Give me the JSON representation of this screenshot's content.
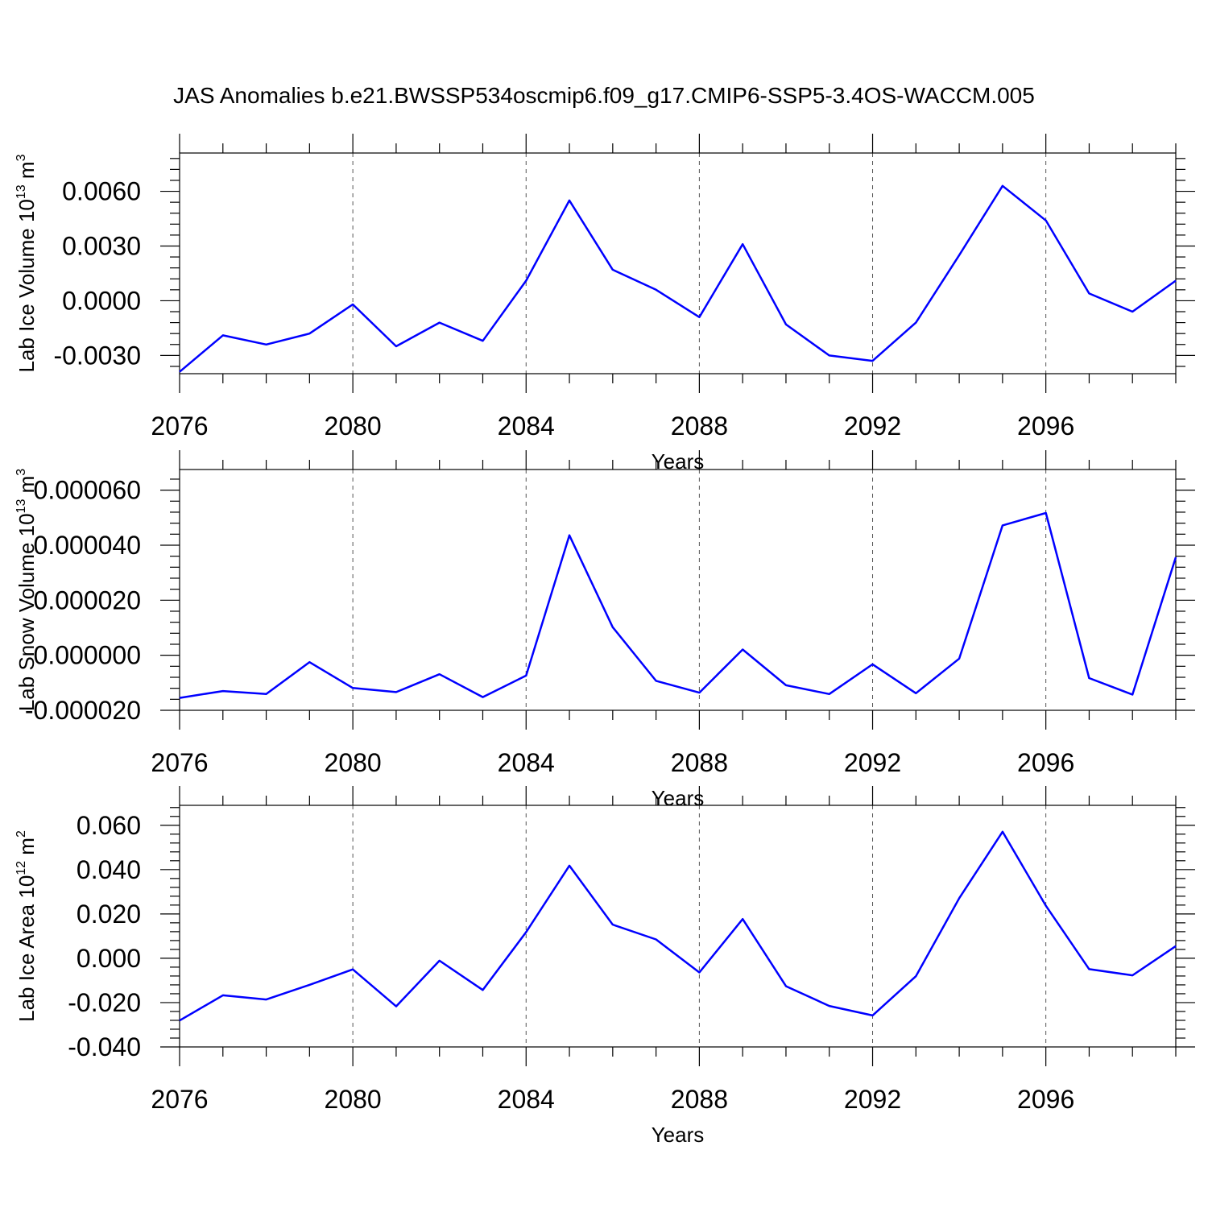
{
  "chart_data": {
    "title": "JAS Anomalies b.e21.BWSSP534oscmip6.f09_g17.CMIP6-SSP5-3.4OS-WACCM.005",
    "line_color": "#0000ff",
    "grid_color": "#555555",
    "panels": [
      {
        "type": "line",
        "ylabel": "Lab Ice Volume 10",
        "ylabel_sup": "13",
        "ylabel_unit": "m",
        "ylabel_unit_sup": "3",
        "xlabel": "Years",
        "xlim": [
          2076,
          2099
        ],
        "ylim": [
          -0.004,
          0.0081
        ],
        "yticks": [
          "0.0060",
          "0.0030",
          "0.0000",
          "-0.0030"
        ],
        "ytick_values": [
          0.006,
          0.003,
          0.0,
          -0.003
        ],
        "xticks": [
          "2076",
          "2080",
          "2084",
          "2088",
          "2092",
          "2096"
        ],
        "xtick_values": [
          2076,
          2080,
          2084,
          2088,
          2092,
          2096
        ],
        "x": [
          2076,
          2077,
          2078,
          2079,
          2080,
          2081,
          2082,
          2083,
          2084,
          2085,
          2086,
          2087,
          2088,
          2089,
          2090,
          2091,
          2092,
          2093,
          2094,
          2095,
          2096,
          2097,
          2098,
          2099
        ],
        "y": [
          -0.0039,
          -0.0019,
          -0.0024,
          -0.0018,
          -0.0002,
          -0.0025,
          -0.0012,
          -0.0022,
          0.0011,
          0.0055,
          0.0017,
          0.0006,
          -0.0009,
          0.0031,
          -0.0013,
          -0.003,
          -0.0033,
          -0.0012,
          0.0025,
          0.0063,
          0.0044,
          0.0004,
          -0.0006,
          0.0011
        ]
      },
      {
        "type": "line",
        "ylabel": "Lab Snow Volume 10",
        "ylabel_sup": "13",
        "ylabel_unit": "m",
        "ylabel_unit_sup": "3",
        "xlabel": "Years",
        "xlim": [
          2076,
          2099
        ],
        "ylim": [
          -2e-05,
          6.75e-05
        ],
        "yticks": [
          "0.000060",
          "0.000040",
          "0.000020",
          "0.000000",
          "-0.000020"
        ],
        "ytick_values": [
          6e-05,
          4e-05,
          2e-05,
          0.0,
          -2e-05
        ],
        "xticks": [
          "2076",
          "2080",
          "2084",
          "2088",
          "2092",
          "2096"
        ],
        "xtick_values": [
          2076,
          2080,
          2084,
          2088,
          2092,
          2096
        ],
        "x": [
          2076,
          2077,
          2078,
          2079,
          2080,
          2081,
          2082,
          2083,
          2084,
          2085,
          2086,
          2087,
          2088,
          2089,
          2090,
          2091,
          2092,
          2093,
          2094,
          2095,
          2096,
          2097,
          2098,
          2099
        ],
        "y": [
          -1.55e-05,
          -1.3e-05,
          -1.41e-05,
          -2.5e-06,
          -1.19e-05,
          -1.34e-05,
          -6.9e-06,
          -1.52e-05,
          -7.4e-06,
          4.36e-05,
          1.02e-05,
          -9.3e-06,
          -1.36e-05,
          2.1e-06,
          -1.09e-05,
          -1.41e-05,
          -3.3e-06,
          -1.38e-05,
          -1.2e-06,
          4.72e-05,
          5.17e-05,
          -8.3e-06,
          -1.43e-05,
          3.56e-05
        ]
      },
      {
        "type": "line",
        "ylabel": "Lab Ice Area 10",
        "ylabel_sup": "12",
        "ylabel_unit": "m",
        "ylabel_unit_sup": "2",
        "xlabel": "Years",
        "xlim": [
          2076,
          2099
        ],
        "ylim": [
          -0.04,
          0.069
        ],
        "yticks": [
          "0.060",
          "0.040",
          "0.020",
          "0.000",
          "-0.020",
          "-0.040"
        ],
        "ytick_values": [
          0.06,
          0.04,
          0.02,
          0.0,
          -0.02,
          -0.04
        ],
        "xticks": [
          "2076",
          "2080",
          "2084",
          "2088",
          "2092",
          "2096"
        ],
        "xtick_values": [
          2076,
          2080,
          2084,
          2088,
          2092,
          2096
        ],
        "x": [
          2076,
          2077,
          2078,
          2079,
          2080,
          2081,
          2082,
          2083,
          2084,
          2085,
          2086,
          2087,
          2088,
          2089,
          2090,
          2091,
          2092,
          2093,
          2094,
          2095,
          2096,
          2097,
          2098,
          2099
        ],
        "y": [
          -0.0281,
          -0.0167,
          -0.0186,
          -0.012,
          -0.005,
          -0.0217,
          -0.0011,
          -0.0143,
          0.0118,
          0.0418,
          0.0152,
          0.0085,
          -0.0064,
          0.0177,
          -0.0126,
          -0.0215,
          -0.0258,
          -0.0081,
          0.0271,
          0.0571,
          0.0237,
          -0.0049,
          -0.0077,
          0.0055
        ]
      }
    ]
  }
}
